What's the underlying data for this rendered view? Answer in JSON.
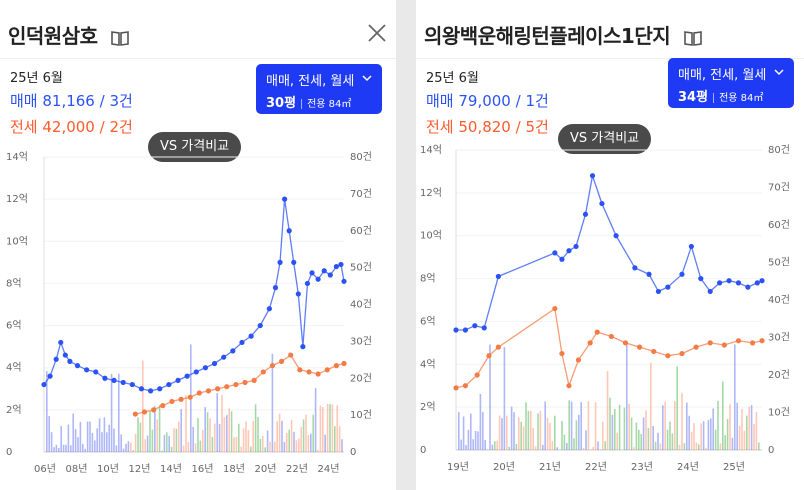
{
  "left": {
    "title": "인덕원삼호",
    "date": "25년 6월",
    "sale_text": "매매 81,166 / 3건",
    "jeonse_text": "전세 42,000 / 2건",
    "filter_types": "매매, 전세, 월세",
    "filter_size": "30평",
    "filter_area": "전용 84㎡",
    "vs_label": "VS 가격비교"
  },
  "right": {
    "title": "의왕백운해링턴플레이스1단지",
    "date": "25년 6월",
    "sale_text": "매매 79,000 / 1건",
    "jeonse_text": "전세 50,820 / 5건",
    "filter_types": "매매, 전세, 월세",
    "filter_size": "34평",
    "filter_area": "전용 84㎡",
    "vs_label": "VS 가격비교"
  },
  "icons": {
    "book": "book-icon",
    "close": "close-icon",
    "dropdown": "chevron-down-icon"
  },
  "colors": {
    "sale": "#2b52f5",
    "jeonse": "#ff5a2e",
    "filter_button": "#1f3af5",
    "rent_volume": "#2ca02c"
  },
  "chart_data": [
    {
      "type": "line",
      "y_left_ticks": [
        "14억",
        "12억",
        "10억",
        "8억",
        "6억",
        "4억",
        "2억",
        "0"
      ],
      "y_right_ticks": [
        "80건",
        "70건",
        "60건",
        "50건",
        "40건",
        "30건",
        "20건",
        "10건",
        "0"
      ],
      "x_ticks": [
        "06년",
        "08년",
        "10년",
        "12년",
        "14년",
        "16년",
        "18년",
        "20년",
        "22년",
        "24년"
      ],
      "ylim": [
        0,
        14
      ],
      "y2lim": [
        0,
        80
      ],
      "x_range": [
        2005.8,
        2025.5
      ],
      "series": [
        {
          "kind": "sale",
          "x": [
            2005.8,
            2006.2,
            2006.6,
            2006.9,
            2007.2,
            2007.5,
            2008.0,
            2008.6,
            2009.2,
            2009.8,
            2010.4,
            2011.0,
            2011.6,
            2012.2,
            2012.8,
            2013.4,
            2014.0,
            2014.6,
            2015.2,
            2015.8,
            2016.4,
            2017.0,
            2017.6,
            2018.2,
            2018.8,
            2019.4,
            2020.0,
            2020.6,
            2021.0,
            2021.3,
            2021.6,
            2021.9,
            2022.2,
            2022.5,
            2022.8,
            2023.1,
            2023.4,
            2023.8,
            2024.2,
            2024.6,
            2025.0,
            2025.3,
            2025.5
          ],
          "y": [
            3.2,
            3.6,
            4.4,
            5.2,
            4.6,
            4.3,
            4.1,
            3.9,
            3.8,
            3.5,
            3.4,
            3.3,
            3.2,
            3.0,
            2.9,
            3.0,
            3.2,
            3.4,
            3.6,
            3.8,
            4.0,
            4.2,
            4.5,
            4.8,
            5.2,
            5.5,
            6.0,
            6.8,
            7.8,
            9.0,
            12.0,
            10.5,
            9.0,
            7.5,
            5.0,
            8.0,
            8.5,
            8.2,
            8.6,
            8.4,
            8.8,
            8.9,
            8.1
          ]
        },
        {
          "kind": "jeonse",
          "x": [
            2011.8,
            2012.4,
            2013.0,
            2013.6,
            2014.2,
            2014.8,
            2015.4,
            2016.0,
            2016.6,
            2017.2,
            2017.8,
            2018.4,
            2019.0,
            2019.6,
            2020.2,
            2020.8,
            2021.4,
            2022.0,
            2022.6,
            2023.2,
            2023.8,
            2024.4,
            2025.0,
            2025.5
          ],
          "y": [
            1.8,
            1.9,
            2.0,
            2.2,
            2.4,
            2.5,
            2.6,
            2.8,
            2.9,
            3.0,
            3.1,
            3.2,
            3.3,
            3.4,
            3.8,
            4.1,
            4.3,
            4.6,
            3.9,
            3.8,
            3.7,
            3.9,
            4.1,
            4.2
          ]
        }
      ]
    },
    {
      "type": "line",
      "y_left_ticks": [
        "14억",
        "12억",
        "10억",
        "8억",
        "6억",
        "4억",
        "2억",
        "0"
      ],
      "y_right_ticks": [
        "80건",
        "70건",
        "60건",
        "50건",
        "40건",
        "30건",
        "20건",
        "10건",
        "0"
      ],
      "x_ticks": [
        "19년",
        "20년",
        "21년",
        "22년",
        "23년",
        "24년",
        "25년"
      ],
      "ylim": [
        0,
        14
      ],
      "y2lim": [
        0,
        80
      ],
      "x_range": [
        2019.0,
        2025.5
      ],
      "series": [
        {
          "kind": "sale",
          "x": [
            2019.0,
            2019.2,
            2019.4,
            2019.6,
            2019.9,
            2021.1,
            2021.25,
            2021.4,
            2021.55,
            2021.75,
            2021.9,
            2022.1,
            2022.4,
            2022.8,
            2023.1,
            2023.3,
            2023.5,
            2023.8,
            2024.0,
            2024.2,
            2024.4,
            2024.6,
            2024.8,
            2025.0,
            2025.2,
            2025.4,
            2025.5
          ],
          "y": [
            5.6,
            5.6,
            5.8,
            5.7,
            8.1,
            9.2,
            8.9,
            9.3,
            9.5,
            11.0,
            12.8,
            11.5,
            10.0,
            8.5,
            8.2,
            7.4,
            7.6,
            8.2,
            9.5,
            8.0,
            7.4,
            7.8,
            7.9,
            7.8,
            7.6,
            7.8,
            7.9
          ]
        },
        {
          "kind": "jeonse",
          "x": [
            2019.0,
            2019.2,
            2019.45,
            2019.7,
            2019.9,
            2021.1,
            2021.25,
            2021.4,
            2021.6,
            2021.85,
            2022.0,
            2022.3,
            2022.6,
            2022.9,
            2023.2,
            2023.5,
            2023.8,
            2024.1,
            2024.4,
            2024.7,
            2025.0,
            2025.3,
            2025.5
          ],
          "y": [
            2.9,
            3.0,
            3.5,
            4.4,
            4.8,
            6.6,
            4.5,
            3.0,
            4.2,
            5.0,
            5.5,
            5.3,
            5.0,
            4.8,
            4.6,
            4.4,
            4.5,
            4.8,
            5.0,
            4.9,
            5.1,
            5.0,
            5.1
          ]
        }
      ]
    }
  ]
}
